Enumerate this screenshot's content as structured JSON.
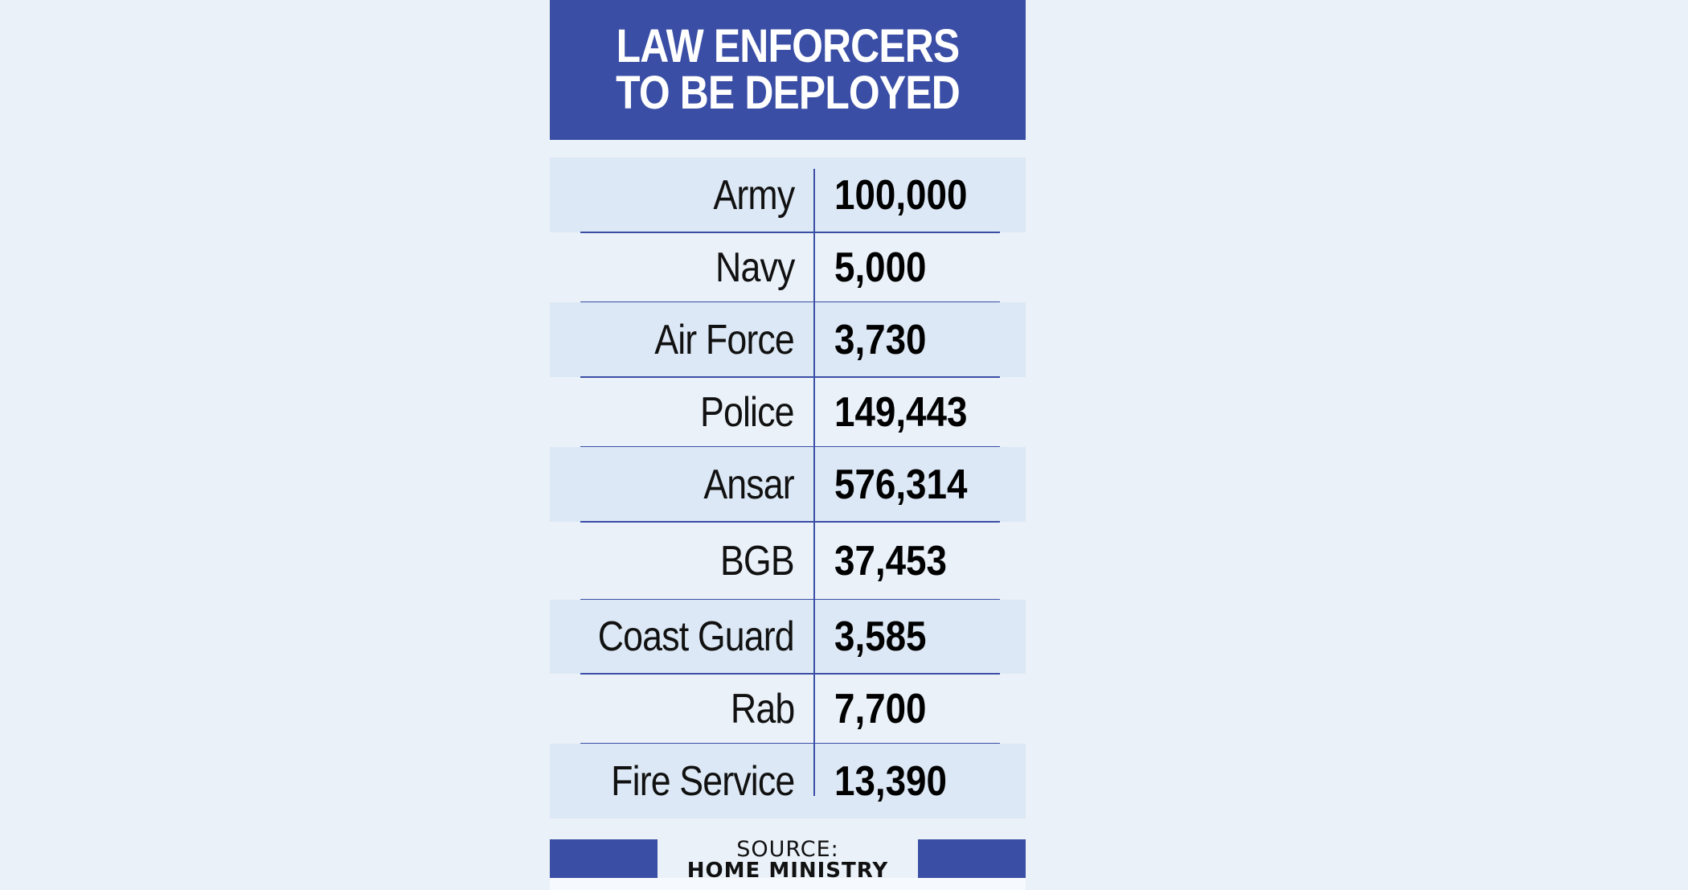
{
  "chart_data": {
    "type": "table",
    "title": "LAW ENFORCERS TO BE DEPLOYED",
    "categories": [
      "Army",
      "Navy",
      "Air Force",
      "Police",
      "Ansar",
      "BGB",
      "Coast Guard",
      "Rab",
      "Fire Service"
    ],
    "values": [
      "100,000",
      "5,000",
      "3,730",
      "149,443",
      "576,314",
      "37,453",
      "3,585",
      "7,700",
      "13,390"
    ],
    "source_label": "SOURCE:",
    "source": "HOME MINISTRY"
  },
  "colors": {
    "header_bg": "#3a4ea5",
    "row_shade": "#dce8f5",
    "page_bg": "#eaf1f9"
  }
}
